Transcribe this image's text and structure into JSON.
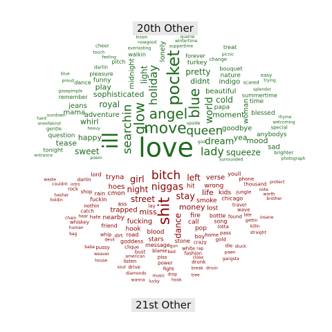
{
  "labels": {
    "top": "20th Other",
    "bottom": "21st Other"
  },
  "colors": {
    "top_group": "#1f6b1f",
    "bottom_group": "#8b0000",
    "label_bg": "#e8e8e8"
  },
  "top_words": [
    {
      "text": "love",
      "size": 38,
      "vertical": false
    },
    {
      "text": "move",
      "size": 22,
      "vertical": false
    },
    {
      "text": "angel",
      "size": 20,
      "vertical": false
    },
    {
      "text": "queen",
      "size": 17,
      "vertical": false
    },
    {
      "text": "glow",
      "size": 20,
      "vertical": true
    },
    {
      "text": "searchin",
      "size": 17,
      "vertical": true
    },
    {
      "text": "lady",
      "size": 16,
      "vertical": false
    },
    {
      "text": "ill",
      "size": 30,
      "vertical": true
    },
    {
      "text": "pocket",
      "size": 24,
      "vertical": true
    },
    {
      "text": "blue",
      "size": 20,
      "vertical": true
    },
    {
      "text": "holiday",
      "size": 16,
      "vertical": true
    },
    {
      "text": "world",
      "size": 14,
      "vertical": true
    },
    {
      "text": "dream",
      "size": 13,
      "vertical": false
    },
    {
      "text": "sophisticated",
      "size": 11,
      "vertical": false
    },
    {
      "text": "adventure",
      "size": 10,
      "vertical": false
    },
    {
      "text": "squeeze",
      "size": 12,
      "vertical": false
    },
    {
      "text": "goodbye",
      "size": 10,
      "vertical": false
    },
    {
      "text": "moment",
      "size": 11,
      "vertical": false
    },
    {
      "text": "sweet",
      "size": 12,
      "vertical": false
    },
    {
      "text": "happy",
      "size": 11,
      "vertical": false
    },
    {
      "text": "beautiful",
      "size": 10,
      "vertical": false
    },
    {
      "text": "royal",
      "size": 12,
      "vertical": false
    },
    {
      "text": "light",
      "size": 12,
      "vertical": true
    },
    {
      "text": "yea",
      "size": 11,
      "vertical": false
    },
    {
      "text": "whirl",
      "size": 11,
      "vertical": false
    },
    {
      "text": "cold",
      "size": 12,
      "vertical": false
    },
    {
      "text": "didnt",
      "size": 11,
      "vertical": false
    },
    {
      "text": "mood",
      "size": 11,
      "vertical": false
    },
    {
      "text": "midnight",
      "size": 10,
      "vertical": true
    },
    {
      "text": "woman",
      "size": 10,
      "vertical": true
    },
    {
      "text": "pretty",
      "size": 12,
      "vertical": false
    },
    {
      "text": "play",
      "size": 11,
      "vertical": false
    },
    {
      "text": "indigo",
      "size": 10,
      "vertical": false
    },
    {
      "text": "tease",
      "size": 11,
      "vertical": false
    },
    {
      "text": "mama",
      "size": 10,
      "vertical": false
    },
    {
      "text": "jeans",
      "size": 10,
      "vertical": false
    },
    {
      "text": "funny",
      "size": 9,
      "vertical": false
    },
    {
      "text": "turkey",
      "size": 9,
      "vertical": false
    },
    {
      "text": "question",
      "size": 9,
      "vertical": false
    },
    {
      "text": "blessed",
      "size": 9,
      "vertical": false
    },
    {
      "text": "lonely",
      "size": 10,
      "vertical": true
    },
    {
      "text": "sad",
      "size": 10,
      "vertical": false
    },
    {
      "text": "anybodys",
      "size": 9,
      "vertical": false
    },
    {
      "text": "papa",
      "size": 9,
      "vertical": false
    },
    {
      "text": "time",
      "size": 9,
      "vertical": false
    },
    {
      "text": "nature",
      "size": 9,
      "vertical": false
    },
    {
      "text": "pleasure",
      "size": 8,
      "vertical": false
    },
    {
      "text": "forever",
      "size": 8,
      "vertical": false
    },
    {
      "text": "tonight",
      "size": 8,
      "vertical": false
    },
    {
      "text": "pitch",
      "size": 8,
      "vertical": false
    },
    {
      "text": "remember",
      "size": 8,
      "vertical": false
    },
    {
      "text": "walkin",
      "size": 8,
      "vertical": false
    },
    {
      "text": "summertime",
      "size": 8,
      "vertical": false
    },
    {
      "text": "bouquet",
      "size": 8,
      "vertical": false
    },
    {
      "text": "dance",
      "size": 8,
      "vertical": false
    },
    {
      "text": "gentle",
      "size": 7,
      "vertical": false
    },
    {
      "text": "darlin",
      "size": 7,
      "vertical": false
    },
    {
      "text": "change",
      "size": 7,
      "vertical": false
    },
    {
      "text": "brighter",
      "size": 7,
      "vertical": false
    },
    {
      "text": "special",
      "size": 7,
      "vertical": false
    },
    {
      "text": "scared",
      "size": 7,
      "vertical": false
    },
    {
      "text": "surrounded",
      "size": 6,
      "vertical": false
    },
    {
      "text": "gosepimple",
      "size": 6,
      "vertical": false
    },
    {
      "text": "upside",
      "size": 6,
      "vertical": false
    },
    {
      "text": "heavy",
      "size": 6,
      "vertical": false
    },
    {
      "text": "everlasting",
      "size": 6,
      "vertical": false
    },
    {
      "text": "suppertime",
      "size": 6,
      "vertical": false
    },
    {
      "text": "sundown",
      "size": 6,
      "vertical": false
    },
    {
      "text": "splendor",
      "size": 6,
      "vertical": false
    },
    {
      "text": "feeling",
      "size": 6,
      "vertical": false
    },
    {
      "text": "entrance",
      "size": 6,
      "vertical": false
    },
    {
      "text": "oneofakind",
      "size": 6,
      "vertical": false
    },
    {
      "text": "welcoming",
      "size": 6,
      "vertical": false
    },
    {
      "text": "nowgood",
      "size": 6,
      "vertical": false
    },
    {
      "text": "wintertime",
      "size": 6,
      "vertical": false
    },
    {
      "text": "picnic",
      "size": 6,
      "vertical": false
    },
    {
      "text": "rhyme",
      "size": 6,
      "vertical": false
    },
    {
      "text": "photograph",
      "size": 6,
      "vertical": false
    },
    {
      "text": "quarrel",
      "size": 6,
      "vertical": false
    },
    {
      "text": "kissin",
      "size": 6,
      "vertical": false
    },
    {
      "text": "poem",
      "size": 6,
      "vertical": false
    },
    {
      "text": "proud",
      "size": 6,
      "vertical": false
    },
    {
      "text": "touch",
      "size": 6,
      "vertical": false
    },
    {
      "text": "trying",
      "size": 6,
      "vertical": false
    },
    {
      "text": "god",
      "size": 6,
      "vertical": false
    },
    {
      "text": "treat",
      "size": 8,
      "vertical": false
    },
    {
      "text": "relate",
      "size": 8,
      "vertical": false
    },
    {
      "text": "easy",
      "size": 7,
      "vertical": false
    },
    {
      "text": "cheer",
      "size": 7,
      "vertical": false
    },
    {
      "text": "crowd",
      "size": 7,
      "vertical": false
    },
    {
      "text": "hard",
      "size": 6,
      "vertical": false
    },
    {
      "text": "blue",
      "size": 6,
      "vertical": false
    },
    {
      "text": "treasure",
      "size": 6,
      "vertical": false
    },
    {
      "text": "honey",
      "size": 6,
      "vertical": false
    },
    {
      "text": "cry",
      "size": 7,
      "vertical": false
    },
    {
      "text": "fountain",
      "size": 6,
      "vertical": false
    },
    {
      "text": "pleasin",
      "size": 6,
      "vertical": false
    },
    {
      "text": "quality",
      "size": 6,
      "vertical": false
    },
    {
      "text": "education",
      "size": 6,
      "vertical": false
    },
    {
      "text": "mazy",
      "size": 6,
      "vertical": false
    },
    {
      "text": "dark",
      "size": 6,
      "vertical": false
    },
    {
      "text": "maze",
      "size": 6,
      "vertical": false
    },
    {
      "text": "citysalaska",
      "size": 6,
      "vertical": false
    },
    {
      "text": "awake",
      "size": 7,
      "vertical": false
    },
    {
      "text": "imagine",
      "size": 7,
      "vertical": false
    },
    {
      "text": "worn",
      "size": 7,
      "vertical": false
    },
    {
      "text": "climb",
      "size": 7,
      "vertical": false
    },
    {
      "text": "feelin",
      "size": 8,
      "vertical": false
    },
    {
      "text": "night",
      "size": 8,
      "vertical": false
    },
    {
      "text": "sing",
      "size": 8,
      "vertical": false
    },
    {
      "text": "seem",
      "size": 8,
      "vertical": false
    },
    {
      "text": "season",
      "size": 7,
      "vertical": false
    },
    {
      "text": "fever",
      "size": 7,
      "vertical": false
    },
    {
      "text": "morning",
      "size": 7,
      "vertical": false
    },
    {
      "text": "mend",
      "size": 7,
      "vertical": false
    },
    {
      "text": "low",
      "size": 7,
      "vertical": false
    },
    {
      "text": "nubian",
      "size": 7,
      "vertical": false
    },
    {
      "text": "whoa",
      "size": 9,
      "vertical": false
    },
    {
      "text": "life",
      "size": 9,
      "vertical": false
    },
    {
      "text": "eyes",
      "size": 9,
      "vertical": false
    },
    {
      "text": "dear",
      "size": 8,
      "vertical": false
    },
    {
      "text": "tale",
      "size": 8,
      "vertical": false
    },
    {
      "text": "sentimental",
      "size": 7,
      "vertical": false
    },
    {
      "text": "baddie",
      "size": 6,
      "vertical": false
    },
    {
      "text": "chance",
      "size": 6,
      "vertical": false
    },
    {
      "text": "rainbowlaugh",
      "size": 6,
      "vertical": false
    }
  ],
  "bottom_words": [
    {
      "text": "bitch",
      "size": 17,
      "vertical": false
    },
    {
      "text": "niggas",
      "size": 14,
      "vertical": false
    },
    {
      "text": "shit",
      "size": 22,
      "vertical": true
    },
    {
      "text": "girl",
      "size": 13,
      "vertical": false
    },
    {
      "text": "stay",
      "size": 13,
      "vertical": false
    },
    {
      "text": "left",
      "size": 12,
      "vertical": false
    },
    {
      "text": "night",
      "size": 12,
      "vertical": false
    },
    {
      "text": "street",
      "size": 12,
      "vertical": false
    },
    {
      "text": "money",
      "size": 11,
      "vertical": false
    },
    {
      "text": "miss",
      "size": 11,
      "vertical": false
    },
    {
      "text": "life",
      "size": 11,
      "vertical": false
    },
    {
      "text": "dance",
      "size": 12,
      "vertical": true
    },
    {
      "text": "verse",
      "size": 10,
      "vertical": false
    },
    {
      "text": "tryna",
      "size": 10,
      "vertical": false
    },
    {
      "text": "fucking",
      "size": 10,
      "vertical": false
    },
    {
      "text": "trapped",
      "size": 10,
      "vertical": false
    },
    {
      "text": "hoes",
      "size": 10,
      "vertical": false
    },
    {
      "text": "wrong",
      "size": 9,
      "vertical": false
    },
    {
      "text": "smoke",
      "size": 9,
      "vertical": false
    },
    {
      "text": "fire",
      "size": 9,
      "vertical": false
    },
    {
      "text": "hit",
      "size": 9,
      "vertical": false
    },
    {
      "text": "cmon",
      "size": 9,
      "vertical": false
    },
    {
      "text": "call",
      "size": 9,
      "vertical": false
    },
    {
      "text": "lost",
      "size": 9,
      "vertical": false
    },
    {
      "text": "blood",
      "size": 9,
      "vertical": false
    },
    {
      "text": "kids",
      "size": 9,
      "vertical": false
    },
    {
      "text": "hook",
      "size": 9,
      "vertical": false
    },
    {
      "text": "pop",
      "size": 9,
      "vertical": false
    },
    {
      "text": "ass",
      "size": 8,
      "vertical": false
    },
    {
      "text": "youll",
      "size": 8,
      "vertical": false
    },
    {
      "text": "bottle",
      "size": 8,
      "vertical": false
    },
    {
      "text": "nearby",
      "head": 0,
      "size": 9,
      "vertical": false
    },
    {
      "text": "stars",
      "size": 9,
      "vertical": false
    },
    {
      "text": "rain",
      "size": 8,
      "vertical": false
    },
    {
      "text": "lord",
      "size": 8,
      "vertical": false
    },
    {
      "text": "chicago",
      "size": 8,
      "vertical": false
    },
    {
      "text": "fuckin",
      "size": 8,
      "vertical": false
    },
    {
      "text": "road",
      "size": 8,
      "vertical": false
    },
    {
      "text": "stone",
      "size": 8,
      "vertical": false
    },
    {
      "text": "song",
      "size": 8,
      "vertical": false
    },
    {
      "text": "message",
      "size": 8,
      "vertical": false
    },
    {
      "text": "boy",
      "size": 8,
      "vertical": false
    },
    {
      "text": "friend",
      "size": 8,
      "vertical": false
    },
    {
      "text": "goddess",
      "size": 8,
      "vertical": false
    },
    {
      "text": "jungle",
      "size": 7,
      "vertical": false
    },
    {
      "text": "phone",
      "size": 7,
      "vertical": false
    },
    {
      "text": "travel",
      "size": 7,
      "vertical": false
    },
    {
      "text": "lotta",
      "size": 7,
      "vertical": false
    },
    {
      "text": "crazy",
      "size": 7,
      "vertical": false
    },
    {
      "text": "darlin",
      "size": 7,
      "vertical": false
    },
    {
      "text": "home",
      "size": 7,
      "vertical": false
    },
    {
      "text": "dirt",
      "size": 7,
      "vertical": false
    },
    {
      "text": "nothin",
      "size": 7,
      "vertical": false
    },
    {
      "text": "blame",
      "size": 7,
      "vertical": false
    },
    {
      "text": "shop",
      "size": 7,
      "vertical": false
    },
    {
      "text": "white",
      "size": 7,
      "vertical": false
    },
    {
      "text": "found",
      "size": 7,
      "vertical": false
    },
    {
      "text": "clique",
      "size": 7,
      "vertical": false
    },
    {
      "text": "hate",
      "size": 7,
      "vertical": false
    },
    {
      "text": "wave",
      "size": 7,
      "vertical": false
    },
    {
      "text": "pass",
      "size": 7,
      "vertical": false
    },
    {
      "text": "bust",
      "size": 7,
      "vertical": false
    },
    {
      "text": "catch",
      "size": 7,
      "vertical": false
    },
    {
      "text": "whip",
      "size": 7,
      "vertical": false
    },
    {
      "text": "piss",
      "size": 7,
      "vertical": false
    },
    {
      "text": "lay",
      "size": 7,
      "vertical": false
    },
    {
      "text": "fashion",
      "size": 7,
      "vertical": false
    },
    {
      "text": "gold",
      "size": 7,
      "vertical": false
    },
    {
      "text": "thousand",
      "size": 7,
      "vertical": false
    },
    {
      "text": "devil",
      "size": 6,
      "vertical": false
    },
    {
      "text": "intro",
      "size": 6,
      "vertical": false
    },
    {
      "text": "american",
      "size": 6,
      "vertical": false
    },
    {
      "text": "rock",
      "size": 7,
      "vertical": false
    },
    {
      "text": "power",
      "size": 7,
      "vertical": false
    },
    {
      "text": "close",
      "size": 6,
      "vertical": false
    },
    {
      "text": "late",
      "size": 6,
      "vertical": false
    },
    {
      "text": "gun",
      "size": 6,
      "vertical": false
    },
    {
      "text": "hear",
      "size": 6,
      "vertical": false
    },
    {
      "text": "note",
      "size": 6,
      "vertical": false
    },
    {
      "text": "gettin",
      "size": 6,
      "vertical": false
    },
    {
      "text": "die",
      "size": 7,
      "vertical": false
    },
    {
      "text": "drunk",
      "size": 7,
      "vertical": false
    },
    {
      "text": "listen",
      "size": 7,
      "vertical": false
    },
    {
      "text": "whiskey",
      "size": 7,
      "vertical": false
    },
    {
      "text": "pussy",
      "size": 7,
      "vertical": false
    },
    {
      "text": "fight",
      "size": 7,
      "vertical": false
    },
    {
      "text": "drive",
      "size": 7,
      "vertical": false
    },
    {
      "text": "worth",
      "size": 6,
      "vertical": false
    },
    {
      "text": "killin",
      "size": 6,
      "vertical": false
    },
    {
      "text": "pawn",
      "size": 6,
      "vertical": false
    },
    {
      "text": "break",
      "size": 6,
      "vertical": false
    },
    {
      "text": "bed",
      "size": 6,
      "vertical": false
    },
    {
      "text": "couldnt",
      "size": 6,
      "vertical": false
    },
    {
      "text": "hesher",
      "size": 6,
      "vertical": false
    },
    {
      "text": "chain",
      "size": 6,
      "vertical": false
    },
    {
      "text": "human",
      "size": 6,
      "vertical": false
    },
    {
      "text": "weaver",
      "size": 6,
      "vertical": false
    },
    {
      "text": "drop",
      "size": 6,
      "vertical": false
    },
    {
      "text": "diamonds",
      "size": 6,
      "vertical": false
    },
    {
      "text": "stuck",
      "size": 6,
      "vertical": false
    },
    {
      "text": "protect",
      "size": 6,
      "vertical": false
    },
    {
      "text": "rap",
      "size": 6,
      "vertical": false
    },
    {
      "text": "brother",
      "size": 6,
      "vertical": false
    },
    {
      "text": "music",
      "size": 6,
      "vertical": false
    },
    {
      "text": "soul",
      "size": 6,
      "vertical": false
    },
    {
      "text": "straight",
      "size": 6,
      "vertical": false
    },
    {
      "text": "gangsta",
      "size": 6,
      "vertical": false
    },
    {
      "text": "drivin",
      "size": 6,
      "vertical": false
    },
    {
      "text": "insane",
      "size": 6,
      "vertical": false
    },
    {
      "text": "babe",
      "size": 6,
      "vertical": false
    },
    {
      "text": "tree",
      "size": 6,
      "vertical": false
    },
    {
      "text": "holdin",
      "size": 6,
      "vertical": false
    },
    {
      "text": "bag",
      "size": 6,
      "vertical": false
    },
    {
      "text": "house",
      "size": 6,
      "vertical": false
    },
    {
      "text": "hook",
      "size": 6,
      "vertical": false
    },
    {
      "text": "lucky",
      "size": 6,
      "vertical": false
    },
    {
      "text": "waste",
      "size": 6,
      "vertical": false
    },
    {
      "text": "wanna",
      "size": 6,
      "vertical": false
    }
  ]
}
